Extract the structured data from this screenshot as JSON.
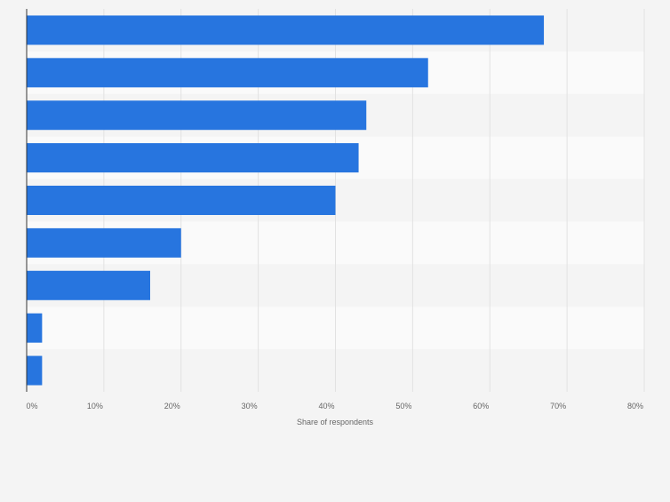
{
  "chart_data": {
    "type": "bar",
    "orientation": "horizontal",
    "categories": [
      "",
      "",
      "",
      "",
      "",
      "",
      "",
      "",
      ""
    ],
    "values": [
      67,
      52,
      44,
      43,
      40,
      20,
      16,
      2,
      2
    ],
    "xlabel": "Share of respondents",
    "xlim": [
      0,
      80
    ],
    "xticks": [
      0,
      10,
      20,
      30,
      40,
      50,
      60,
      70,
      80
    ],
    "xtick_labels": [
      "0%",
      "10%",
      "20%",
      "30%",
      "40%",
      "50%",
      "60%",
      "70%",
      "80%"
    ],
    "grid": "vertical",
    "bar_color": "#2775df",
    "band_colors": [
      "#f4f4f4",
      "#fafafa"
    ]
  }
}
